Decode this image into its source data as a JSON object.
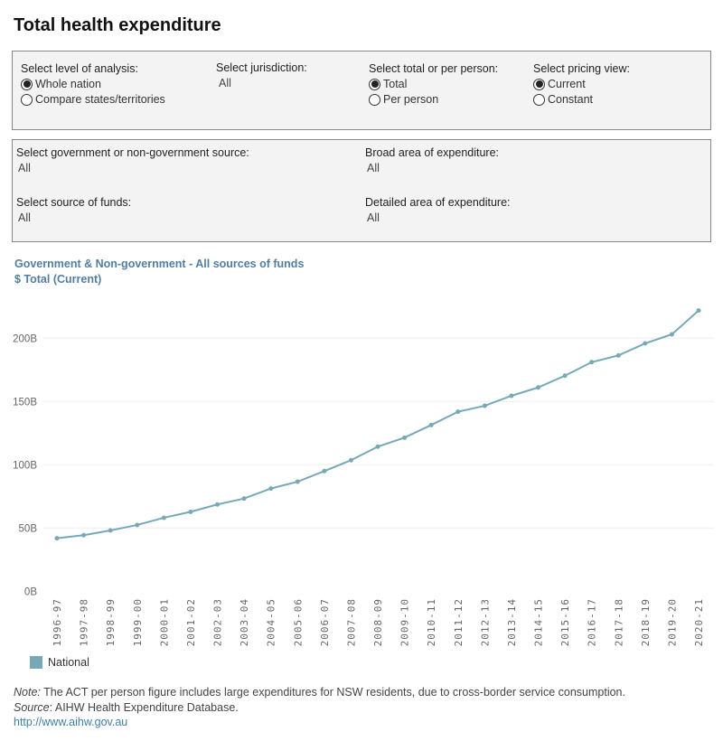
{
  "title": "Total health expenditure",
  "filters1": {
    "level": {
      "label": "Select level of analysis:",
      "options": [
        {
          "label": "Whole nation",
          "selected": true
        },
        {
          "label": "Compare states/territories",
          "selected": false
        }
      ]
    },
    "jurisdiction": {
      "label": "Select jurisdiction:",
      "value": "All"
    },
    "total": {
      "label": "Select total or per person:",
      "options": [
        {
          "label": "Total",
          "selected": true
        },
        {
          "label": "Per person",
          "selected": false
        }
      ]
    },
    "pricing": {
      "label": "Select pricing view:",
      "options": [
        {
          "label": "Current",
          "selected": true
        },
        {
          "label": "Constant",
          "selected": false
        }
      ]
    }
  },
  "filters2": {
    "gov": {
      "label": "Select government or non-government source:",
      "value": "All"
    },
    "broad": {
      "label": "Broad area of expenditure:",
      "value": "All"
    },
    "source": {
      "label": "Select source of funds:",
      "value": "All"
    },
    "detailed": {
      "label": "Detailed area of expenditure:",
      "value": "All"
    }
  },
  "chart_data": {
    "type": "line",
    "title": "Government & Non-government - All sources of funds",
    "subtitle": "$ Total (Current)",
    "categories": [
      "1996-97",
      "1997-98",
      "1998-99",
      "1999-00",
      "2000-01",
      "2001-02",
      "2002-03",
      "2003-04",
      "2004-05",
      "2005-06",
      "2006-07",
      "2007-08",
      "2008-09",
      "2009-10",
      "2010-11",
      "2011-12",
      "2012-13",
      "2013-14",
      "2014-15",
      "2015-16",
      "2016-17",
      "2017-18",
      "2018-19",
      "2019-20",
      "2020-21"
    ],
    "series": [
      {
        "name": "National",
        "color": "#76a9b8",
        "values": [
          41.9,
          44.3,
          48.1,
          52.4,
          58.1,
          62.8,
          68.6,
          73.3,
          81.2,
          86.6,
          95.0,
          103.6,
          114.3,
          121.4,
          131.4,
          141.9,
          146.6,
          154.5,
          161.1,
          170.4,
          181.1,
          186.4,
          195.9,
          203.1,
          221.9
        ]
      }
    ],
    "yticks": [
      {
        "v": 0,
        "label": "0B"
      },
      {
        "v": 50,
        "label": "50B"
      },
      {
        "v": 100,
        "label": "100B"
      },
      {
        "v": 150,
        "label": "150B"
      },
      {
        "v": 200,
        "label": "200B"
      }
    ],
    "ylim": [
      0,
      230
    ],
    "grid": true,
    "legend": "bottom-left"
  },
  "footer": {
    "note_label": "Note:",
    "note": " The ACT per person figure includes large expenditures for NSW residents, due to cross-border service consumption.",
    "source_label": "Source",
    "source": ": AIHW Health Expenditure Database.",
    "link": "http://www.aihw.gov.au"
  }
}
